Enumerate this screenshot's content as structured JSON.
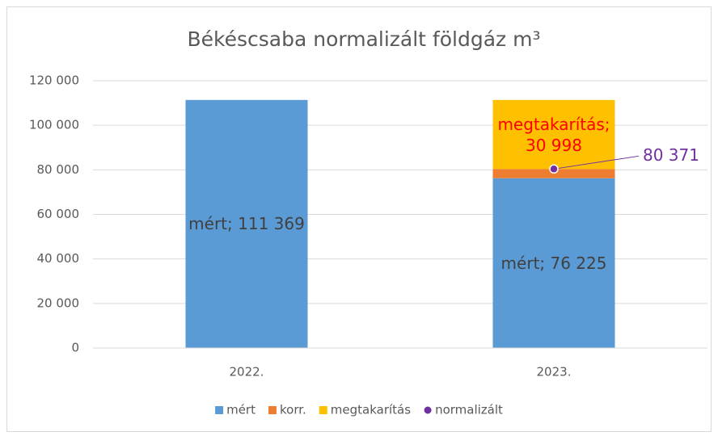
{
  "chart_data": {
    "type": "bar",
    "stacked": true,
    "title": "Békéscsaba normalizált földgáz m³",
    "categories": [
      "2022.",
      "2023."
    ],
    "series": [
      {
        "name": "mért",
        "color": "#5b9bd5",
        "values": [
          111369,
          76225
        ],
        "value_labels": [
          "mért; 111 369",
          "mért; 76 225"
        ],
        "label_color": "#404040"
      },
      {
        "name": "korr.",
        "color": "#ed7d31",
        "values": [
          null,
          4146
        ]
      },
      {
        "name": "megtakarítás",
        "color": "#ffc000",
        "values": [
          null,
          30998
        ],
        "value_labels": [
          null,
          "megtakarítás; 30 998"
        ],
        "label_color": "#ff0000"
      },
      {
        "name": "normalizált",
        "type": "scatter",
        "color": "#7030a0",
        "values": [
          null,
          80371
        ],
        "value_labels": [
          null,
          "80 371"
        ],
        "label_color": "#7030a0"
      }
    ],
    "ylim": [
      0,
      120000
    ],
    "yticks": [
      0,
      {
        "value": 20000,
        "label": "20 000"
      },
      {
        "value": 40000,
        "label": "40 000"
      },
      {
        "value": 60000,
        "label": "60 000"
      },
      {
        "value": 80000,
        "label": "80 000"
      },
      {
        "value": 100000,
        "label": "100 000"
      },
      {
        "value": 120000,
        "label": "120 000"
      }
    ],
    "grid": true,
    "legend": "bottom"
  }
}
